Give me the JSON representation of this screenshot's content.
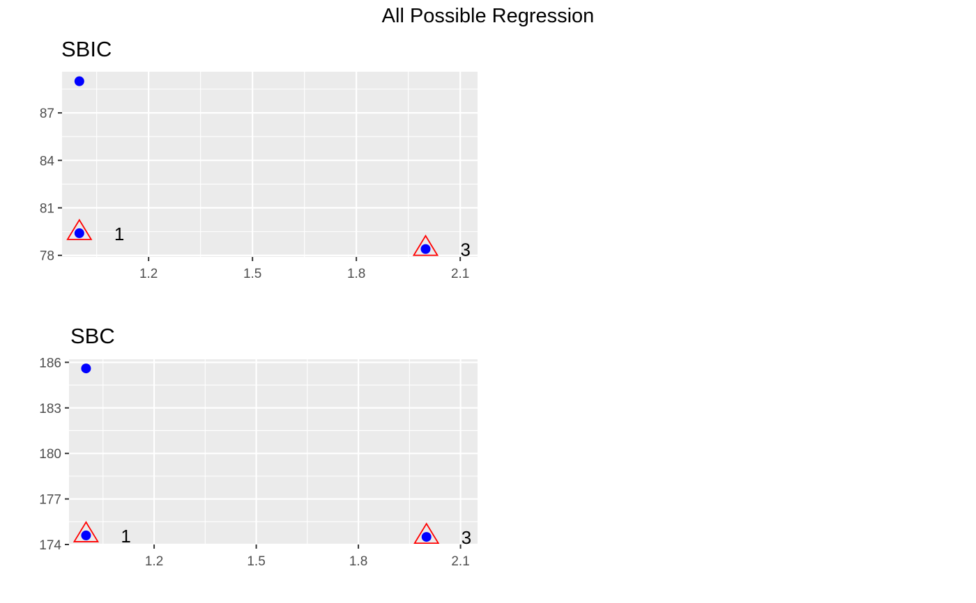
{
  "title": "All Possible Regression",
  "colors": {
    "panel_bg": "#ebebeb",
    "grid": "#ffffff",
    "point": "#0000ff",
    "marker": "#ff0000",
    "tick": "#333333"
  },
  "chart_data": [
    {
      "type": "scatter",
      "title": "SBIC",
      "xlabel": "",
      "ylabel": "",
      "xlim": [
        0.95,
        2.15
      ],
      "ylim": [
        77.9,
        89.6
      ],
      "xticks": [
        1.2,
        1.5,
        1.8,
        2.1
      ],
      "xtick_labels": [
        "1.2",
        "1.5",
        "1.8",
        "2.1"
      ],
      "yticks": [
        78,
        81,
        84,
        87
      ],
      "ytick_labels": [
        "78",
        "81",
        "84",
        "87"
      ],
      "grid": true,
      "points": [
        {
          "x": 1,
          "y": 89.0
        },
        {
          "x": 1,
          "y": 79.4
        },
        {
          "x": 2,
          "y": 78.4
        }
      ],
      "highlights": [
        {
          "x": 1,
          "y": 79.4,
          "label": "1"
        },
        {
          "x": 2,
          "y": 78.4,
          "label": "3"
        }
      ]
    },
    {
      "type": "scatter",
      "title": "SBC",
      "xlabel": "",
      "ylabel": "",
      "xlim": [
        0.95,
        2.15
      ],
      "ylim": [
        174.0,
        186.2
      ],
      "xticks": [
        1.2,
        1.5,
        1.8,
        2.1
      ],
      "xtick_labels": [
        "1.2",
        "1.5",
        "1.8",
        "2.1"
      ],
      "yticks": [
        174,
        177,
        180,
        183,
        186
      ],
      "ytick_labels": [
        "174",
        "177",
        "180",
        "183",
        "186"
      ],
      "grid": true,
      "points": [
        {
          "x": 1,
          "y": 185.6
        },
        {
          "x": 1,
          "y": 174.6
        },
        {
          "x": 2,
          "y": 174.5
        }
      ],
      "highlights": [
        {
          "x": 1,
          "y": 174.6,
          "label": "1"
        },
        {
          "x": 2,
          "y": 174.5,
          "label": "3"
        }
      ]
    }
  ]
}
